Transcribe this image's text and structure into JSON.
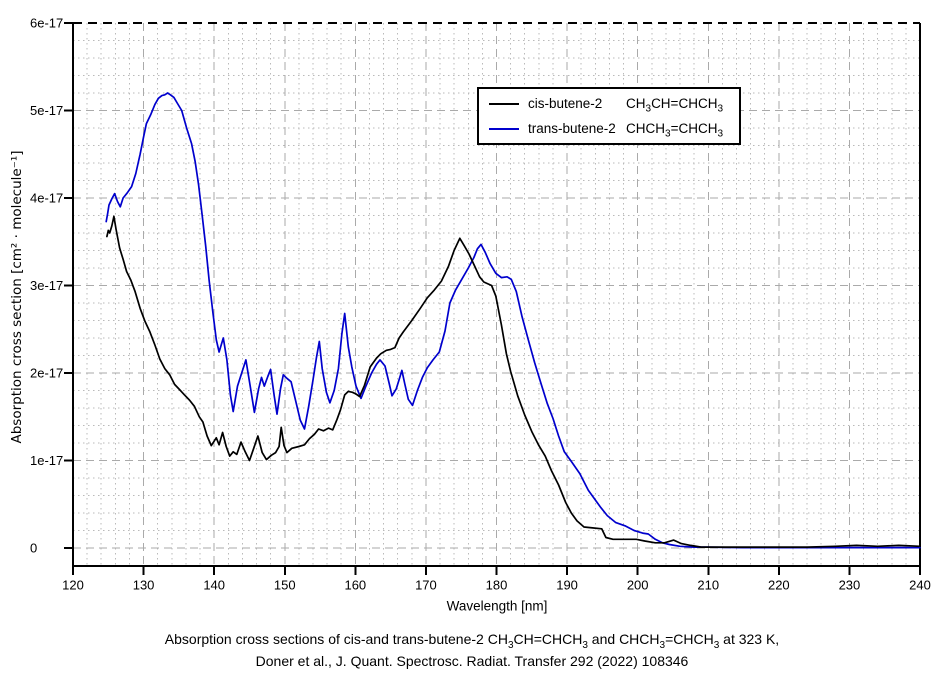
{
  "axes": {
    "x_title": "Wavelength [nm]",
    "y_title": "Absorption cross section [cm² · molecule⁻¹]"
  },
  "legend": {
    "entries": [
      {
        "label": "cis-butene-2",
        "formula": "CH3CH=CHCH3",
        "color": "#000000"
      },
      {
        "label": "trans-butene-2",
        "formula": "CHCH3=CHCH3",
        "color": "#0000cd"
      }
    ]
  },
  "caption": {
    "line1_segments": [
      {
        "text": "Absorption cross sections of cis-and trans-butene-2 "
      },
      {
        "formula": "CH3CH=CHCH3"
      },
      {
        "text": " and "
      },
      {
        "formula": "CHCH3=CHCH3"
      },
      {
        "text": " at 323 K,"
      }
    ],
    "line2": "Doner et al., J. Quant. Spectrosc. Radiat. Transfer 292 (2022) 108346"
  },
  "chart_data": {
    "type": "line",
    "title": "",
    "xlabel": "Wavelength [nm]",
    "ylabel": "Absorption cross section [cm² · molecule⁻¹]",
    "xlim": [
      120,
      240
    ],
    "ylim": [
      0,
      6e-17
    ],
    "series_y_unit": "1e-17 cm^2 per molecule (multiply listed y values by 1e-17)",
    "x_ticks": [
      120,
      130,
      140,
      150,
      160,
      170,
      180,
      190,
      200,
      210,
      220,
      230,
      240
    ],
    "y_ticks": [
      {
        "v": 0,
        "label": "0"
      },
      {
        "v": 1,
        "label": "1e-17"
      },
      {
        "v": 2,
        "label": "2e-17"
      },
      {
        "v": 3,
        "label": "3e-17"
      },
      {
        "v": 4,
        "label": "4e-17"
      },
      {
        "v": 5,
        "label": "5e-17"
      },
      {
        "v": 6,
        "label": "6e-17"
      }
    ],
    "x_minor_step": 2,
    "y_minor_step": 0.2,
    "grid": {
      "major": "dashed",
      "minor": "dotted",
      "major_color": "#aaaaaa",
      "minor_color": "#bababa"
    },
    "legend_position": "upper center-right",
    "series": [
      {
        "name": "trans-butene-2",
        "color": "#0000cd",
        "points": [
          [
            124.7,
            3.73
          ],
          [
            124.9,
            3.82
          ],
          [
            125.1,
            3.92
          ],
          [
            125.5,
            3.99
          ],
          [
            125.9,
            4.05
          ],
          [
            126.3,
            3.96
          ],
          [
            126.7,
            3.9
          ],
          [
            127.1,
            4.0
          ],
          [
            127.7,
            4.06
          ],
          [
            128.3,
            4.13
          ],
          [
            128.9,
            4.28
          ],
          [
            129.5,
            4.5
          ],
          [
            130.0,
            4.7
          ],
          [
            130.4,
            4.85
          ],
          [
            131.0,
            4.95
          ],
          [
            131.6,
            5.07
          ],
          [
            132.1,
            5.14
          ],
          [
            132.6,
            5.17
          ],
          [
            133.0,
            5.18
          ],
          [
            133.4,
            5.2
          ],
          [
            133.8,
            5.18
          ],
          [
            134.3,
            5.15
          ],
          [
            134.8,
            5.08
          ],
          [
            135.4,
            5.0
          ],
          [
            136.1,
            4.8
          ],
          [
            136.8,
            4.62
          ],
          [
            137.3,
            4.42
          ],
          [
            137.8,
            4.15
          ],
          [
            138.3,
            3.8
          ],
          [
            138.8,
            3.45
          ],
          [
            139.3,
            3.05
          ],
          [
            139.8,
            2.7
          ],
          [
            140.3,
            2.38
          ],
          [
            140.7,
            2.24
          ],
          [
            141.3,
            2.4
          ],
          [
            141.8,
            2.15
          ],
          [
            142.3,
            1.75
          ],
          [
            142.7,
            1.56
          ],
          [
            143.3,
            1.85
          ],
          [
            143.9,
            2.0
          ],
          [
            144.5,
            2.15
          ],
          [
            145.1,
            1.85
          ],
          [
            145.7,
            1.55
          ],
          [
            146.3,
            1.82
          ],
          [
            146.7,
            1.95
          ],
          [
            147.1,
            1.85
          ],
          [
            147.6,
            1.96
          ],
          [
            148.0,
            2.04
          ],
          [
            148.5,
            1.74
          ],
          [
            148.9,
            1.53
          ],
          [
            149.4,
            1.82
          ],
          [
            149.8,
            1.98
          ],
          [
            150.3,
            1.94
          ],
          [
            150.9,
            1.9
          ],
          [
            151.5,
            1.7
          ],
          [
            152.2,
            1.46
          ],
          [
            152.8,
            1.36
          ],
          [
            153.4,
            1.62
          ],
          [
            154.0,
            1.92
          ],
          [
            154.5,
            2.18
          ],
          [
            154.9,
            2.36
          ],
          [
            155.3,
            2.05
          ],
          [
            155.9,
            1.78
          ],
          [
            156.4,
            1.66
          ],
          [
            157.0,
            1.8
          ],
          [
            157.6,
            2.05
          ],
          [
            158.1,
            2.45
          ],
          [
            158.5,
            2.68
          ],
          [
            159.0,
            2.3
          ],
          [
            159.5,
            2.07
          ],
          [
            160.1,
            1.85
          ],
          [
            160.8,
            1.71
          ],
          [
            161.5,
            1.85
          ],
          [
            162.3,
            2.0
          ],
          [
            163.0,
            2.1
          ],
          [
            163.5,
            2.15
          ],
          [
            164.2,
            2.08
          ],
          [
            164.8,
            1.88
          ],
          [
            165.2,
            1.74
          ],
          [
            165.8,
            1.82
          ],
          [
            166.3,
            1.95
          ],
          [
            166.6,
            2.03
          ],
          [
            167.0,
            1.88
          ],
          [
            167.5,
            1.7
          ],
          [
            168.1,
            1.63
          ],
          [
            168.8,
            1.8
          ],
          [
            169.5,
            1.95
          ],
          [
            170.2,
            2.06
          ],
          [
            171.0,
            2.15
          ],
          [
            171.9,
            2.24
          ],
          [
            172.7,
            2.48
          ],
          [
            173.4,
            2.8
          ],
          [
            174.2,
            2.95
          ],
          [
            175.0,
            3.06
          ],
          [
            176.0,
            3.2
          ],
          [
            176.8,
            3.32
          ],
          [
            177.3,
            3.42
          ],
          [
            177.8,
            3.47
          ],
          [
            178.4,
            3.38
          ],
          [
            179.1,
            3.25
          ],
          [
            179.9,
            3.14
          ],
          [
            180.7,
            3.09
          ],
          [
            181.5,
            3.1
          ],
          [
            182.1,
            3.07
          ],
          [
            182.8,
            2.93
          ],
          [
            183.6,
            2.65
          ],
          [
            184.5,
            2.38
          ],
          [
            185.4,
            2.12
          ],
          [
            186.3,
            1.88
          ],
          [
            187.2,
            1.65
          ],
          [
            188.0,
            1.48
          ],
          [
            188.8,
            1.28
          ],
          [
            189.6,
            1.1
          ],
          [
            190.6,
            0.99
          ],
          [
            191.8,
            0.85
          ],
          [
            193.0,
            0.66
          ],
          [
            194.7,
            0.47
          ],
          [
            195.7,
            0.37
          ],
          [
            196.9,
            0.29
          ],
          [
            198.3,
            0.25
          ],
          [
            199.5,
            0.2
          ],
          [
            200.7,
            0.17
          ],
          [
            201.5,
            0.16
          ],
          [
            202.5,
            0.1
          ],
          [
            203.5,
            0.06
          ],
          [
            204.5,
            0.04
          ],
          [
            206.0,
            0.02
          ],
          [
            208.0,
            0.01
          ],
          [
            210.0,
            0.01
          ],
          [
            215.0,
            0.005
          ],
          [
            220.0,
            0.005
          ],
          [
            225.0,
            0.005
          ],
          [
            230.0,
            0.005
          ],
          [
            235.0,
            0.005
          ],
          [
            240.0,
            0.005
          ]
        ]
      },
      {
        "name": "cis-butene-2",
        "color": "#000000",
        "points": [
          [
            124.8,
            3.56
          ],
          [
            125.0,
            3.63
          ],
          [
            125.2,
            3.6
          ],
          [
            125.5,
            3.68
          ],
          [
            125.8,
            3.79
          ],
          [
            126.1,
            3.64
          ],
          [
            126.6,
            3.43
          ],
          [
            127.1,
            3.3
          ],
          [
            127.6,
            3.16
          ],
          [
            128.2,
            3.06
          ],
          [
            128.8,
            2.93
          ],
          [
            129.5,
            2.74
          ],
          [
            130.2,
            2.59
          ],
          [
            130.9,
            2.47
          ],
          [
            131.6,
            2.32
          ],
          [
            132.3,
            2.16
          ],
          [
            133.0,
            2.05
          ],
          [
            133.7,
            1.98
          ],
          [
            134.4,
            1.87
          ],
          [
            135.1,
            1.81
          ],
          [
            135.8,
            1.75
          ],
          [
            136.5,
            1.69
          ],
          [
            137.2,
            1.62
          ],
          [
            137.9,
            1.5
          ],
          [
            138.4,
            1.44
          ],
          [
            139.0,
            1.28
          ],
          [
            139.6,
            1.17
          ],
          [
            140.3,
            1.26
          ],
          [
            140.7,
            1.18
          ],
          [
            141.2,
            1.32
          ],
          [
            141.7,
            1.16
          ],
          [
            142.2,
            1.05
          ],
          [
            142.7,
            1.1
          ],
          [
            143.2,
            1.07
          ],
          [
            143.8,
            1.21
          ],
          [
            144.4,
            1.1
          ],
          [
            145.0,
            1.0
          ],
          [
            145.6,
            1.14
          ],
          [
            146.2,
            1.28
          ],
          [
            146.8,
            1.09
          ],
          [
            147.4,
            1.01
          ],
          [
            148.1,
            1.06
          ],
          [
            148.7,
            1.09
          ],
          [
            149.2,
            1.16
          ],
          [
            149.5,
            1.38
          ],
          [
            149.9,
            1.17
          ],
          [
            150.3,
            1.09
          ],
          [
            151.0,
            1.14
          ],
          [
            152.0,
            1.16
          ],
          [
            152.8,
            1.18
          ],
          [
            153.5,
            1.25
          ],
          [
            154.2,
            1.3
          ],
          [
            154.8,
            1.36
          ],
          [
            155.5,
            1.34
          ],
          [
            156.2,
            1.37
          ],
          [
            156.8,
            1.35
          ],
          [
            157.4,
            1.47
          ],
          [
            157.9,
            1.58
          ],
          [
            158.5,
            1.75
          ],
          [
            159.0,
            1.79
          ],
          [
            159.6,
            1.78
          ],
          [
            160.1,
            1.76
          ],
          [
            160.6,
            1.73
          ],
          [
            161.3,
            1.86
          ],
          [
            162.1,
            2.07
          ],
          [
            163.0,
            2.17
          ],
          [
            163.6,
            2.22
          ],
          [
            164.4,
            2.26
          ],
          [
            165.0,
            2.27
          ],
          [
            165.6,
            2.29
          ],
          [
            166.2,
            2.4
          ],
          [
            166.8,
            2.47
          ],
          [
            168.0,
            2.6
          ],
          [
            169.2,
            2.74
          ],
          [
            170.2,
            2.86
          ],
          [
            171.2,
            2.95
          ],
          [
            172.2,
            3.05
          ],
          [
            173.2,
            3.22
          ],
          [
            174.0,
            3.4
          ],
          [
            174.8,
            3.54
          ],
          [
            175.4,
            3.46
          ],
          [
            176.1,
            3.36
          ],
          [
            176.8,
            3.24
          ],
          [
            177.6,
            3.1
          ],
          [
            178.2,
            3.04
          ],
          [
            179.3,
            3.0
          ],
          [
            179.9,
            2.88
          ],
          [
            180.7,
            2.55
          ],
          [
            181.4,
            2.22
          ],
          [
            182.0,
            2.02
          ],
          [
            183.0,
            1.74
          ],
          [
            184.0,
            1.52
          ],
          [
            185.0,
            1.33
          ],
          [
            186.0,
            1.17
          ],
          [
            186.9,
            1.05
          ],
          [
            187.8,
            0.88
          ],
          [
            188.8,
            0.72
          ],
          [
            189.8,
            0.52
          ],
          [
            190.6,
            0.4
          ],
          [
            191.4,
            0.31
          ],
          [
            192.4,
            0.24
          ],
          [
            193.6,
            0.23
          ],
          [
            194.9,
            0.22
          ],
          [
            195.5,
            0.12
          ],
          [
            196.5,
            0.1
          ],
          [
            198.0,
            0.1
          ],
          [
            199.8,
            0.1
          ],
          [
            201.0,
            0.08
          ],
          [
            202.5,
            0.06
          ],
          [
            203.8,
            0.06
          ],
          [
            205.1,
            0.09
          ],
          [
            206.2,
            0.05
          ],
          [
            207.5,
            0.03
          ],
          [
            209.0,
            0.01
          ],
          [
            212.0,
            0.01
          ],
          [
            216.0,
            0.01
          ],
          [
            220.0,
            0.01
          ],
          [
            224.0,
            0.01
          ],
          [
            228.0,
            0.02
          ],
          [
            231.0,
            0.03
          ],
          [
            234.0,
            0.02
          ],
          [
            237.0,
            0.03
          ],
          [
            240.0,
            0.02
          ]
        ]
      }
    ]
  }
}
